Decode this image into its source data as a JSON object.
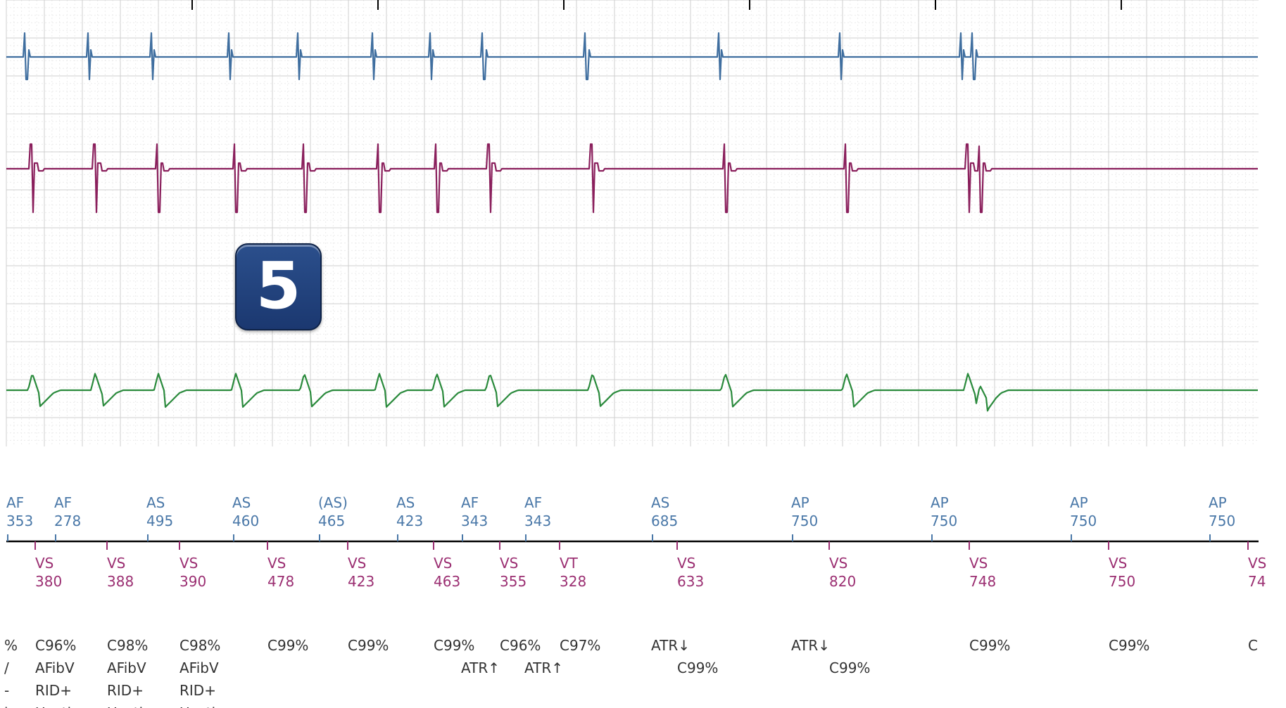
{
  "badge": {
    "label": "5"
  },
  "colors": {
    "channel1": "#3f6e9f",
    "channel2": "#8a1f5c",
    "channel3": "#2a8a3c",
    "atrial_text": "#4a78a8",
    "ventricular_text": "#9b2f72",
    "annotation_text": "#333333",
    "grid": "#d9d9d9",
    "axis": "#000000"
  },
  "chart_data": {
    "type": "line",
    "title": "",
    "xlabel": "",
    "ylabel": "",
    "grid": true,
    "atrial_events": [
      {
        "label": "AF",
        "interval": "353"
      },
      {
        "label": "AF",
        "interval": "278"
      },
      {
        "label": "AS",
        "interval": "495"
      },
      {
        "label": "AS",
        "interval": "460"
      },
      {
        "label": "(AS)",
        "interval": "465"
      },
      {
        "label": "AS",
        "interval": "423"
      },
      {
        "label": "AF",
        "interval": "343"
      },
      {
        "label": "AF",
        "interval": "343"
      },
      {
        "label": "AS",
        "interval": "685"
      },
      {
        "label": "AP",
        "interval": "750"
      },
      {
        "label": "AP",
        "interval": "750"
      },
      {
        "label": "AP",
        "interval": "750"
      },
      {
        "label": "AP",
        "interval": "750"
      }
    ],
    "ventricular_events": [
      {
        "label": "VS",
        "interval": "380"
      },
      {
        "label": "VS",
        "interval": "388"
      },
      {
        "label": "VS",
        "interval": "390"
      },
      {
        "label": "VS",
        "interval": "478"
      },
      {
        "label": "VS",
        "interval": "423"
      },
      {
        "label": "VS",
        "interval": "463"
      },
      {
        "label": "VS",
        "interval": "355"
      },
      {
        "label": "VT",
        "interval": "328"
      },
      {
        "label": "VS",
        "interval": "633"
      },
      {
        "label": "VS",
        "interval": "820"
      },
      {
        "label": "VS",
        "interval": "748"
      },
      {
        "label": "VS",
        "interval": "750"
      },
      {
        "label": "VS",
        "interval": "74"
      }
    ],
    "annotations": [
      {
        "lines": [
          "%",
          "/",
          "-",
          "b"
        ]
      },
      {
        "lines": [
          "C96%",
          "AFibV",
          "RID+",
          "Unstb"
        ]
      },
      {
        "lines": [
          "C98%",
          "AFibV",
          "RID+",
          "Unstb"
        ]
      },
      {
        "lines": [
          "C98%",
          "AFibV",
          "RID+",
          "Unstb"
        ]
      },
      {
        "lines": [
          "C99%"
        ]
      },
      {
        "lines": [
          "C99%"
        ]
      },
      {
        "lines": [
          "C99%",
          "",
          "ATR↑"
        ]
      },
      {
        "lines": [
          "C96%",
          "",
          "ATR↑"
        ]
      },
      {
        "lines": [
          "C97%"
        ]
      },
      {
        "lines": [
          "ATR↓",
          "",
          "C99%"
        ]
      },
      {
        "lines": [
          "ATR↓",
          "",
          "C99%"
        ]
      },
      {
        "lines": [
          "C99%"
        ]
      },
      {
        "lines": [
          "C99%"
        ]
      },
      {
        "lines": [
          "C"
        ]
      }
    ]
  }
}
